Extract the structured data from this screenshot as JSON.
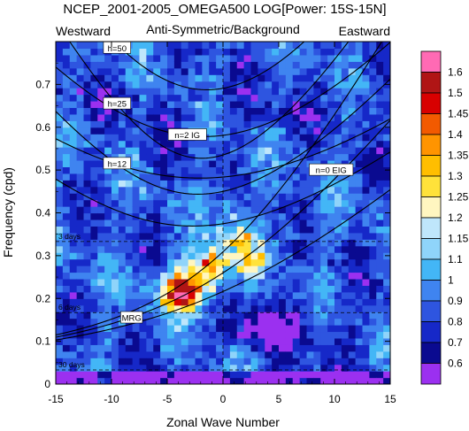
{
  "chart_data": {
    "type": "heatmap",
    "title": "NCEP_2001-2005_OMEGA500 LOG[Power: 15S-15N]",
    "subtitle": "Anti-Symmetric/Background",
    "left_label": "Westward",
    "right_label": "Eastward",
    "xlabel": "Zonal Wave Number",
    "ylabel": "Frequency (cpd)",
    "xlim": [
      -15,
      15
    ],
    "ylim": [
      0,
      0.8
    ],
    "x_ticks": [
      "-15",
      "-10",
      "-5",
      "0",
      "5",
      "10",
      "15"
    ],
    "y_ticks": [
      "0",
      "0.1",
      "0.2",
      "0.3",
      "0.4",
      "0.5",
      "0.6",
      "0.7"
    ],
    "colorbar": {
      "levels": [
        "0.6",
        "0.7",
        "0.8",
        "0.9",
        "1",
        "1.1",
        "1.15",
        "1.2",
        "1.25",
        "1.3",
        "1.35",
        "1.4",
        "1.45",
        "1.5",
        "1.6"
      ],
      "colors": [
        "#9b30f0",
        "#0a0a90",
        "#1628c8",
        "#2e55e0",
        "#3f84f0",
        "#43b6f6",
        "#8fd4fa",
        "#bfe6fb",
        "#fff6c0",
        "#ffe23a",
        "#ffbe00",
        "#ff9400",
        "#f25a00",
        "#d80000",
        "#b01515",
        "#ff6ab4"
      ]
    },
    "period_lines": [
      {
        "label": "3 days",
        "frequency": 0.333
      },
      {
        "label": "6 days",
        "frequency": 0.167
      },
      {
        "label": "30 days",
        "frequency": 0.033
      }
    ],
    "dispersion_labels": [
      {
        "label": "h=50",
        "x": -9.5,
        "y": 0.785
      },
      {
        "label": "h=25",
        "x": -9.5,
        "y": 0.655
      },
      {
        "label": "n=2 IG",
        "x": -3.2,
        "y": 0.582
      },
      {
        "label": "h=12",
        "x": -9.5,
        "y": 0.515
      },
      {
        "label": "n=0 EIG",
        "x": 9.7,
        "y": 0.5
      },
      {
        "label": "MRG",
        "x": -8.2,
        "y": 0.155
      }
    ],
    "grid": false,
    "legend": "right"
  }
}
